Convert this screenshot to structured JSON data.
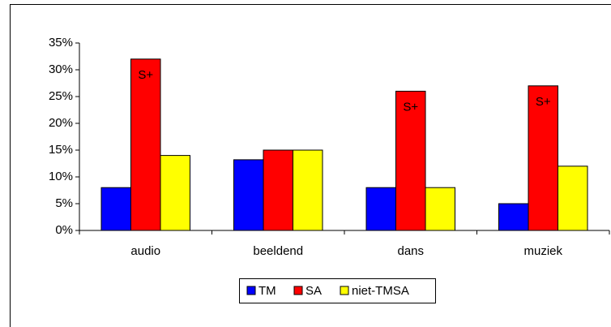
{
  "chart_data": {
    "type": "bar",
    "categories": [
      "audio",
      "beeldend",
      "dans",
      "muziek"
    ],
    "series": [
      {
        "name": "TM",
        "color": "#0000ff",
        "values": [
          8,
          13.2,
          8,
          5
        ]
      },
      {
        "name": "SA",
        "color": "#ff0000",
        "values": [
          32,
          15,
          26,
          27
        ],
        "annotations": [
          "S+",
          null,
          "S+",
          "S+"
        ]
      },
      {
        "name": "niet-TMSA",
        "color": "#ffff00",
        "values": [
          14,
          15,
          8,
          12
        ]
      }
    ],
    "ylim": [
      0,
      35
    ],
    "yticks": [
      {
        "value": 0,
        "label": "0%"
      },
      {
        "value": 5,
        "label": "5%"
      },
      {
        "value": 10,
        "label": "10%"
      },
      {
        "value": 15,
        "label": "15%"
      },
      {
        "value": 20,
        "label": "20%"
      },
      {
        "value": 25,
        "label": "25%"
      },
      {
        "value": 30,
        "label": "30%"
      },
      {
        "value": 35,
        "label": "35%"
      }
    ],
    "grid": false,
    "legend": "bottom"
  }
}
